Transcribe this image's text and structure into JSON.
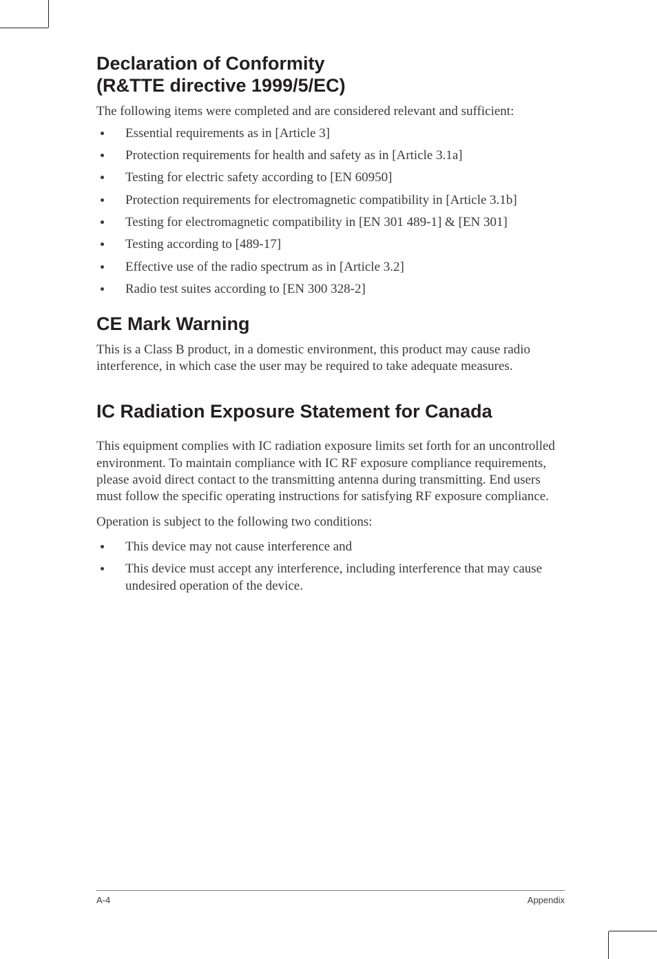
{
  "colors": {
    "text": "#231f20",
    "body": "#3a3a3a",
    "rule": "#808080",
    "background": "#ffffff"
  },
  "typography": {
    "heading_family": "Segoe UI, Helvetica Neue, Arial, sans-serif",
    "heading_size_pt": 20,
    "heading_weight": 700,
    "body_family": "Georgia, Times New Roman, serif",
    "body_size_pt": 14,
    "footer_size_pt": 10
  },
  "sections": [
    {
      "heading_line1": "Declaration of Conformity",
      "heading_line2": "(R&TTE directive 1999/5/EC)",
      "intro": "The following items were completed and are considered relevant and sufficient:",
      "items": [
        "Essential requirements as in [Article 3]",
        "Protection requirements for health and safety as in [Article 3.1a]",
        "Testing for electric safety according to [EN 60950]",
        "Protection requirements for electromagnetic compatibility in [Article 3.1b]",
        "Testing for electromagnetic compatibility in [EN 301 489-1] & [EN 301]",
        "Testing according to [489-17]",
        "Effective use of the radio spectrum as in [Article 3.2]",
        "Radio test suites according to [EN 300 328-2]"
      ]
    },
    {
      "heading": "CE Mark Warning",
      "body": "This is a Class B product, in a domestic environment, this product may cause radio interference, in which case the user may be required to take adequate measures."
    },
    {
      "heading": "IC Radiation Exposure Statement for Canada",
      "body1": "This equipment complies with IC radiation exposure limits set forth for an uncontrolled environment. To maintain compliance with IC RF exposure compliance requirements, please avoid direct contact to the transmitting antenna during transmitting. End users must follow the specific operating instructions for satisfying RF exposure compliance.",
      "body2": "Operation is subject to the following two conditions:",
      "items": [
        "This device may not cause interference and",
        "This device must accept any interference, including interference that  may cause undesired operation of the device."
      ]
    }
  ],
  "footer": {
    "left": "A-4",
    "right": "Appendix"
  }
}
